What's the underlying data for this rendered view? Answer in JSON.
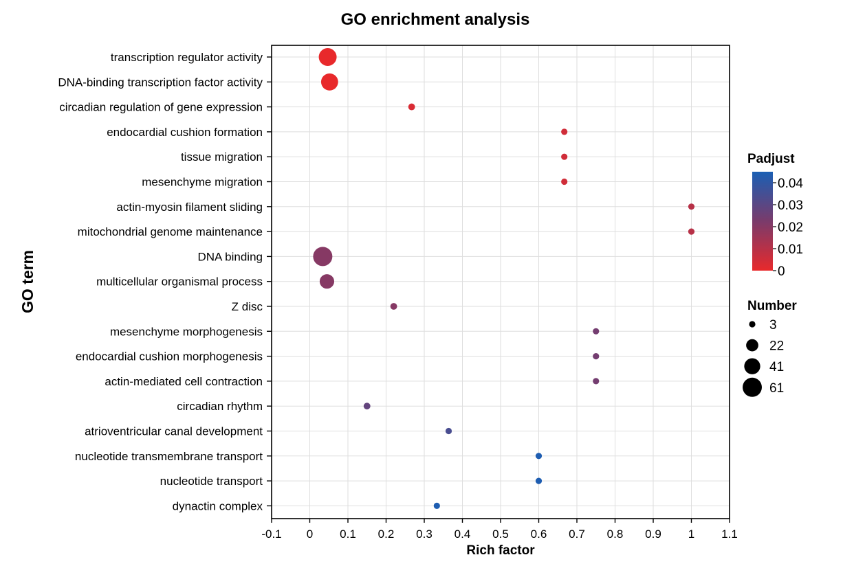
{
  "chart_data": {
    "type": "scatter",
    "title": "GO enrichment analysis",
    "xlabel": "Rich factor",
    "ylabel": "GO term",
    "xlim": [
      -0.1,
      1.1
    ],
    "xticks": [
      "-0.1",
      "0",
      "0.1",
      "0.2",
      "0.3",
      "0.4",
      "0.5",
      "0.6",
      "0.7",
      "0.8",
      "0.9",
      "1",
      "1.1"
    ],
    "xtick_values": [
      -0.1,
      0,
      0.1,
      0.2,
      0.3,
      0.4,
      0.5,
      0.6,
      0.7,
      0.8,
      0.9,
      1,
      1.1
    ],
    "grid": true,
    "legend_placement": "right",
    "color_scale": {
      "title": "Padjust",
      "min": 0,
      "max": 0.045,
      "low_color": "#e8292b",
      "mid_color": "#7a3b6b",
      "high_color": "#1a5fb4",
      "ticks": [
        "0",
        "0.01",
        "0.02",
        "0.03",
        "0.04"
      ],
      "tick_values": [
        0,
        0.01,
        0.02,
        0.03,
        0.04
      ]
    },
    "size_scale": {
      "title": "Number",
      "labels": [
        "3",
        "22",
        "41",
        "61"
      ],
      "values": [
        3,
        22,
        41,
        61
      ]
    },
    "terms": [
      {
        "name": "transcription regulator activity",
        "rich_factor": 0.047,
        "padjust": 0.0,
        "number": 52
      },
      {
        "name": "DNA-binding transcription factor activity",
        "rich_factor": 0.052,
        "padjust": 0.0,
        "number": 47
      },
      {
        "name": "circadian regulation of gene expression",
        "rich_factor": 0.267,
        "padjust": 0.003,
        "number": 4
      },
      {
        "name": "endocardial cushion formation",
        "rich_factor": 0.667,
        "padjust": 0.005,
        "number": 2
      },
      {
        "name": "tissue migration",
        "rich_factor": 0.667,
        "padjust": 0.005,
        "number": 2
      },
      {
        "name": "mesenchyme migration",
        "rich_factor": 0.667,
        "padjust": 0.005,
        "number": 2
      },
      {
        "name": "actin-myosin filament sliding",
        "rich_factor": 1.0,
        "padjust": 0.01,
        "number": 2
      },
      {
        "name": "mitochondrial genome maintenance",
        "rich_factor": 1.0,
        "padjust": 0.01,
        "number": 2
      },
      {
        "name": "DNA binding",
        "rich_factor": 0.034,
        "padjust": 0.02,
        "number": 61
      },
      {
        "name": "multicellular organismal process",
        "rich_factor": 0.045,
        "padjust": 0.02,
        "number": 33
      },
      {
        "name": "Z disc",
        "rich_factor": 0.22,
        "padjust": 0.02,
        "number": 4
      },
      {
        "name": "mesenchyme morphogenesis",
        "rich_factor": 0.75,
        "padjust": 0.024,
        "number": 2
      },
      {
        "name": "endocardial cushion morphogenesis",
        "rich_factor": 0.75,
        "padjust": 0.024,
        "number": 2
      },
      {
        "name": "actin-mediated cell contraction",
        "rich_factor": 0.75,
        "padjust": 0.024,
        "number": 2
      },
      {
        "name": "circadian rhythm",
        "rich_factor": 0.15,
        "padjust": 0.028,
        "number": 4
      },
      {
        "name": "atrioventricular canal development",
        "rich_factor": 0.364,
        "padjust": 0.034,
        "number": 3
      },
      {
        "name": "nucleotide transmembrane transport",
        "rich_factor": 0.6,
        "padjust": 0.044,
        "number": 3
      },
      {
        "name": "nucleotide transport",
        "rich_factor": 0.6,
        "padjust": 0.044,
        "number": 3
      },
      {
        "name": "dynactin complex",
        "rich_factor": 0.333,
        "padjust": 0.044,
        "number": 3
      }
    ]
  }
}
